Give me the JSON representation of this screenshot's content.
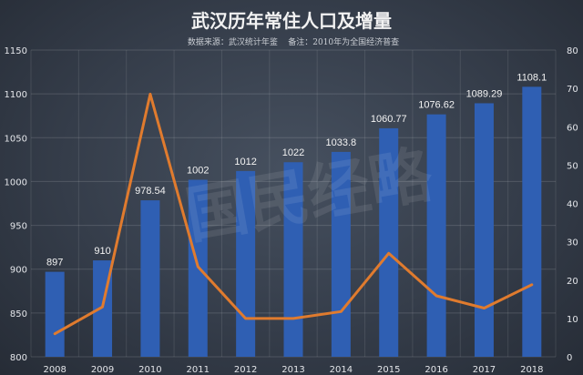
{
  "chart_data": {
    "type": "bar",
    "title": "武汉历年常住人口及增量",
    "subtitle": "数据来源：武汉统计年鉴    备注：2010年为全国经济普查",
    "watermark": "国民经略",
    "categories": [
      "2008",
      "2009",
      "2010",
      "2011",
      "2012",
      "2013",
      "2014",
      "2015",
      "2016",
      "2017",
      "2018"
    ],
    "series": [
      {
        "type": "bar",
        "axis": "left",
        "values": [
          897,
          910,
          978.54,
          1002,
          1012,
          1022,
          1033.8,
          1060.77,
          1076.62,
          1089.29,
          1108.1
        ],
        "labels": [
          "897",
          "910",
          "978.54",
          "1002",
          "1012",
          "1022",
          "1033.8",
          "1060.77",
          "1076.62",
          "1089.29",
          "1108.1"
        ],
        "color": "#2f5fb3"
      },
      {
        "type": "line",
        "axis": "right",
        "values": [
          6,
          13,
          68.5,
          23.5,
          10,
          10,
          11.8,
          27,
          15.9,
          12.7,
          18.8
        ],
        "color": "#e07b2e"
      }
    ],
    "y_left": {
      "min": 800,
      "max": 1150,
      "ticks": [
        "800",
        "850",
        "900",
        "950",
        "1000",
        "1050",
        "1100",
        "1150"
      ]
    },
    "y_right": {
      "min": 0,
      "max": 80,
      "ticks": [
        "0",
        "10",
        "20",
        "30",
        "40",
        "50",
        "60",
        "70",
        "80"
      ]
    },
    "grid": true,
    "legend": "none"
  }
}
